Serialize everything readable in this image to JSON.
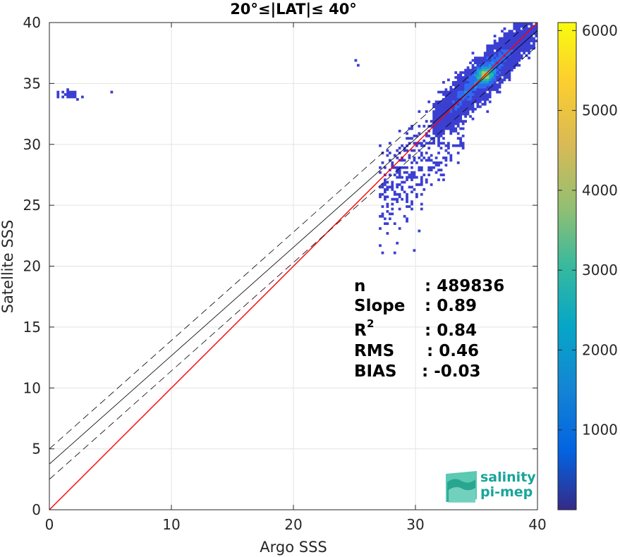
{
  "chart_data": {
    "type": "heatmap",
    "title": "20°≤|LAT|≤ 40°",
    "xlabel": "Argo SSS",
    "ylabel": "Satellite SSS",
    "xlim": [
      0,
      40
    ],
    "ylim": [
      0,
      40
    ],
    "xticks": [
      "0",
      "10",
      "20",
      "30",
      "40"
    ],
    "yticks": [
      "0",
      "5",
      "10",
      "15",
      "20",
      "25",
      "30",
      "35",
      "40"
    ],
    "grid": true,
    "colorbar": {
      "range": [
        0,
        6100
      ],
      "ticks": [
        "1000",
        "2000",
        "3000",
        "4000",
        "5000",
        "6000"
      ],
      "colormap": "parula"
    },
    "lines": [
      {
        "kind": "identity",
        "color": "#ff0000",
        "x": [
          0,
          40
        ],
        "y": [
          0,
          40
        ]
      },
      {
        "kind": "regression",
        "color": "#000000",
        "x": [
          0,
          40
        ],
        "y": [
          3.75,
          39.35
        ]
      },
      {
        "kind": "regression-upper",
        "color": "#000000",
        "dash": true,
        "x": [
          0,
          40
        ],
        "y": [
          5.0,
          40.6
        ]
      },
      {
        "kind": "regression-lower",
        "color": "#000000",
        "dash": true,
        "x": [
          0,
          40
        ],
        "y": [
          2.5,
          38.1
        ]
      }
    ],
    "density_peak": {
      "x": 35.6,
      "y": 35.6
    },
    "stats": {
      "n": {
        "label": "n",
        "value": ": 489836"
      },
      "slope": {
        "label": "Slope",
        "value": ": 0.89"
      },
      "r2": {
        "label": "R",
        "sup": "2",
        "value": ": 0.84"
      },
      "rms": {
        "label": "RMS",
        "value": ": 0.46"
      },
      "bias": {
        "label": "BIAS",
        "value": ": -0.03"
      }
    }
  },
  "logo": {
    "line1": "salinity",
    "line2": "pi-mep"
  }
}
